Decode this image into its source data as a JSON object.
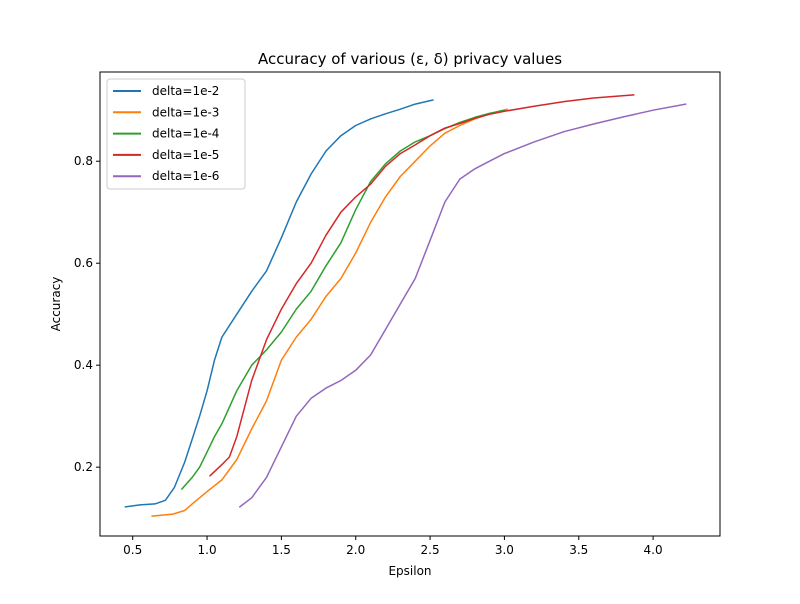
{
  "chart_data": {
    "type": "line",
    "title": "Accuracy of various (ε, δ) privacy values",
    "xlabel": "Epsilon",
    "ylabel": "Accuracy",
    "xlim": [
      0.28,
      4.45
    ],
    "ylim": [
      0.065,
      0.975
    ],
    "xticks": [
      0.5,
      1.0,
      1.5,
      2.0,
      2.5,
      3.0,
      3.5,
      4.0
    ],
    "xtick_labels": [
      "0.5",
      "1.0",
      "1.5",
      "2.0",
      "2.5",
      "3.0",
      "3.5",
      "4.0"
    ],
    "yticks": [
      0.2,
      0.4,
      0.6,
      0.8
    ],
    "ytick_labels": [
      "0.2",
      "0.4",
      "0.6",
      "0.8"
    ],
    "grid": false,
    "legend_position": "upper-left",
    "series": [
      {
        "name": "delta=1e-2",
        "color": "#1f77b4",
        "x": [
          0.45,
          0.55,
          0.65,
          0.72,
          0.78,
          0.85,
          0.9,
          0.95,
          1.0,
          1.05,
          1.1,
          1.2,
          1.3,
          1.4,
          1.5,
          1.6,
          1.7,
          1.8,
          1.9,
          2.0,
          2.1,
          2.2,
          2.3,
          2.4,
          2.52
        ],
        "y": [
          0.122,
          0.126,
          0.128,
          0.135,
          0.16,
          0.21,
          0.255,
          0.3,
          0.35,
          0.41,
          0.455,
          0.5,
          0.545,
          0.585,
          0.65,
          0.72,
          0.775,
          0.82,
          0.85,
          0.87,
          0.883,
          0.893,
          0.902,
          0.912,
          0.92
        ]
      },
      {
        "name": "delta=1e-3",
        "color": "#ff7f0e",
        "x": [
          0.63,
          0.7,
          0.77,
          0.85,
          0.9,
          1.0,
          1.1,
          1.2,
          1.3,
          1.4,
          1.5,
          1.6,
          1.7,
          1.8,
          1.9,
          2.0,
          2.1,
          2.2,
          2.3,
          2.4,
          2.5,
          2.6,
          2.7,
          2.8,
          2.9,
          3.02
        ],
        "y": [
          0.104,
          0.106,
          0.108,
          0.115,
          0.128,
          0.152,
          0.175,
          0.215,
          0.275,
          0.33,
          0.41,
          0.455,
          0.49,
          0.535,
          0.57,
          0.62,
          0.68,
          0.73,
          0.77,
          0.8,
          0.83,
          0.855,
          0.87,
          0.883,
          0.893,
          0.902
        ]
      },
      {
        "name": "delta=1e-4",
        "color": "#2ca02c",
        "x": [
          0.83,
          0.9,
          0.95,
          1.0,
          1.05,
          1.1,
          1.2,
          1.3,
          1.4,
          1.5,
          1.6,
          1.7,
          1.8,
          1.9,
          2.0,
          2.1,
          2.2,
          2.3,
          2.4,
          2.5,
          2.6,
          2.7,
          2.8,
          2.9,
          3.0
        ],
        "y": [
          0.157,
          0.18,
          0.2,
          0.23,
          0.26,
          0.285,
          0.35,
          0.4,
          0.43,
          0.465,
          0.51,
          0.545,
          0.595,
          0.64,
          0.705,
          0.76,
          0.795,
          0.82,
          0.838,
          0.85,
          0.864,
          0.876,
          0.886,
          0.894,
          0.9
        ]
      },
      {
        "name": "delta=1e-5",
        "color": "#d62728",
        "x": [
          1.02,
          1.1,
          1.15,
          1.2,
          1.3,
          1.4,
          1.5,
          1.6,
          1.7,
          1.8,
          1.9,
          2.0,
          2.1,
          2.2,
          2.3,
          2.4,
          2.5,
          2.6,
          2.7,
          2.8,
          2.9,
          3.0,
          3.2,
          3.4,
          3.6,
          3.87
        ],
        "y": [
          0.183,
          0.205,
          0.22,
          0.26,
          0.37,
          0.45,
          0.51,
          0.56,
          0.6,
          0.655,
          0.7,
          0.73,
          0.755,
          0.79,
          0.815,
          0.832,
          0.85,
          0.865,
          0.874,
          0.884,
          0.892,
          0.898,
          0.908,
          0.917,
          0.924,
          0.93
        ]
      },
      {
        "name": "delta=1e-6",
        "color": "#9467bd",
        "x": [
          1.22,
          1.3,
          1.35,
          1.4,
          1.5,
          1.6,
          1.7,
          1.8,
          1.9,
          2.0,
          2.1,
          2.2,
          2.3,
          2.4,
          2.5,
          2.6,
          2.7,
          2.8,
          2.9,
          3.0,
          3.2,
          3.4,
          3.6,
          3.8,
          4.0,
          4.22
        ],
        "y": [
          0.122,
          0.14,
          0.16,
          0.18,
          0.24,
          0.3,
          0.335,
          0.355,
          0.37,
          0.39,
          0.42,
          0.47,
          0.52,
          0.57,
          0.645,
          0.72,
          0.765,
          0.785,
          0.8,
          0.815,
          0.838,
          0.858,
          0.873,
          0.887,
          0.9,
          0.912
        ]
      }
    ]
  }
}
